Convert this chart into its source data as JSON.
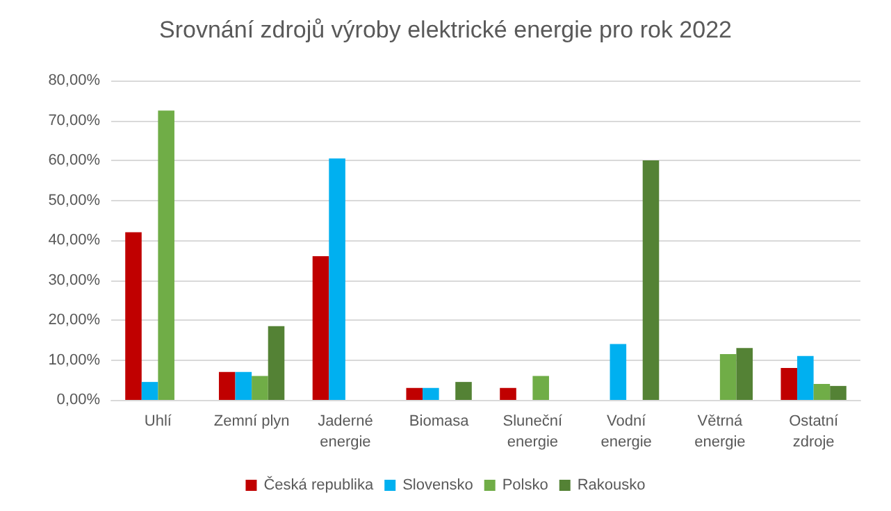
{
  "chart_data": {
    "type": "bar",
    "title": "Srovnání zdrojů výroby elektrické energie pro rok 2022",
    "categories": [
      "Uhlí",
      "Zemní plyn",
      "Jaderné\nenergie",
      "Biomasa",
      "Sluneční\nenergie",
      "Vodní\nenergie",
      "Větrná\nenergie",
      "Ostatní\nzdroje"
    ],
    "series": [
      {
        "name": "Česká republika",
        "color": "#c00000",
        "values": [
          42,
          7,
          36,
          3,
          3,
          0,
          0,
          8
        ]
      },
      {
        "name": "Slovensko",
        "color": "#00b0f0",
        "values": [
          4.5,
          7,
          60.5,
          3,
          0,
          14,
          0,
          11
        ]
      },
      {
        "name": "Polsko",
        "color": "#70ad47",
        "values": [
          72.5,
          6,
          0,
          0,
          6,
          0,
          11.5,
          4
        ]
      },
      {
        "name": "Rakousko",
        "color": "#548235",
        "values": [
          0,
          18.5,
          0,
          4.5,
          0,
          60,
          13,
          3.5
        ]
      }
    ],
    "ylim": [
      0,
      80
    ],
    "yticks": [
      {
        "value": 0,
        "label": "0,00%"
      },
      {
        "value": 10,
        "label": "10,00%"
      },
      {
        "value": 20,
        "label": "20,00%"
      },
      {
        "value": 30,
        "label": "30,00%"
      },
      {
        "value": 40,
        "label": "40,00%"
      },
      {
        "value": 50,
        "label": "50,00%"
      },
      {
        "value": 60,
        "label": "60,00%"
      },
      {
        "value": 70,
        "label": "70,00%"
      },
      {
        "value": 80,
        "label": "80,00%"
      }
    ],
    "grid": "y",
    "legend": "bottom"
  }
}
